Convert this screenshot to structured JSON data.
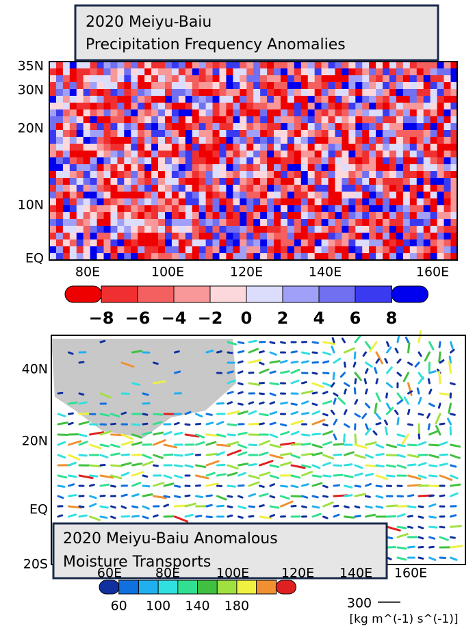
{
  "top_panel": {
    "title": [
      "2020 Meiyu-Baiu",
      "Precipitation Frequency Anomalies"
    ],
    "y_labels": [
      "35N",
      "30N",
      "20N",
      "10N",
      "EQ"
    ],
    "x_labels": [
      "80E",
      "100E",
      "120E",
      "140E",
      "160E"
    ],
    "colorbar": {
      "colors": [
        "#ee0000",
        "#f03030",
        "#f46060",
        "#f89898",
        "#fcd8dc",
        "#dcdcfc",
        "#a0a0f8",
        "#7070f0",
        "#3a3af0",
        "#0000ee"
      ],
      "labels": [
        "−8",
        "−6",
        "−4",
        "−2",
        "0",
        "2",
        "4",
        "6",
        "8"
      ]
    }
  },
  "bottom_panel": {
    "title": [
      "2020 Meiyu-Baiu Anomalous",
      "Moisture Transports"
    ],
    "y_labels": [
      "40N",
      "20N",
      "EQ",
      "20S"
    ],
    "x_labels": [
      "60E",
      "80E",
      "100E",
      "120E",
      "140E",
      "160E"
    ],
    "colorbar": {
      "colors": [
        "#1030a0",
        "#1070e0",
        "#20b0f0",
        "#30e0e0",
        "#30e090",
        "#40c040",
        "#a0e040",
        "#f0f040",
        "#f09030",
        "#e02020"
      ],
      "labels": [
        "60",
        "100",
        "140",
        "180"
      ]
    },
    "reference_value": "300",
    "reference_unit": "[kg m^(-1) s^(-1)]"
  }
}
